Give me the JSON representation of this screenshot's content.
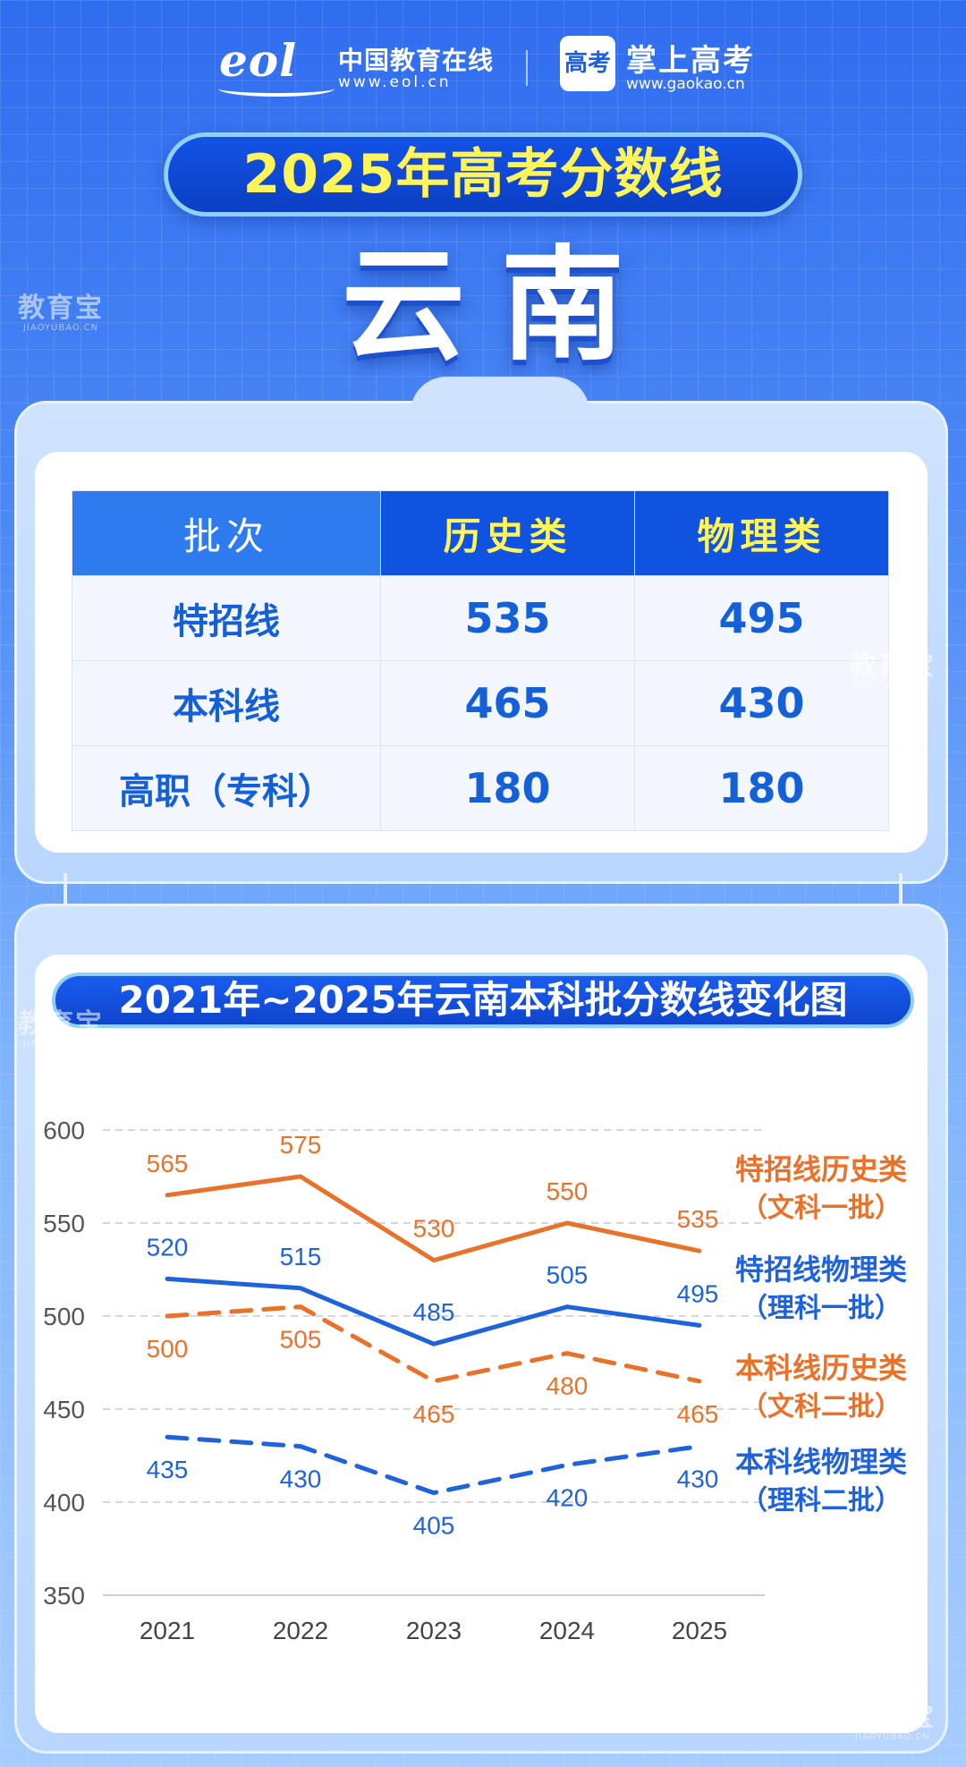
{
  "brand": {
    "eol_mark": "eol",
    "eol_name": "中国教育在线",
    "eol_url": "www.eol.cn",
    "gk_icon": "高考",
    "gk_name": "掌上高考",
    "gk_url": "www.gaokao.cn"
  },
  "banner": {
    "title": "2025年高考分数线"
  },
  "province": "云南",
  "watermark": {
    "cn": "教育宝",
    "en": "JIAOYUBAO.CN"
  },
  "table": {
    "headers": [
      "批次",
      "历史类",
      "物理类"
    ],
    "rows": [
      {
        "batch": "特招线",
        "history": "535",
        "physics": "495"
      },
      {
        "batch": "本科线",
        "history": "465",
        "physics": "430"
      },
      {
        "batch": "高职（专科）",
        "history": "180",
        "physics": "180"
      }
    ]
  },
  "colors": {
    "orange": "#e9722b",
    "blue": "#1f63dc",
    "header_blue": "#0f53e0",
    "header_light": "#2e7bf0",
    "yellow": "#fff45a"
  },
  "chart_data": {
    "type": "line",
    "title": "2021年~2025年云南本科批分数线变化图",
    "x": [
      "2021",
      "2022",
      "2023",
      "2024",
      "2025"
    ],
    "ylim": [
      350,
      600
    ],
    "yticks": [
      "350",
      "400",
      "450",
      "500",
      "550",
      "600"
    ],
    "grid": true,
    "series": [
      {
        "name": "特招线历史类",
        "name2": "（文科一批）",
        "values": [
          565,
          575,
          530,
          550,
          535
        ],
        "color": "#e9722b",
        "dashed": false
      },
      {
        "name": "特招线物理类",
        "name2": "（理科一批）",
        "values": [
          520,
          515,
          485,
          505,
          495
        ],
        "color": "#1f63dc",
        "dashed": false
      },
      {
        "name": "本科线历史类",
        "name2": "（文科二批）",
        "values": [
          500,
          505,
          465,
          480,
          465
        ],
        "color": "#e9722b",
        "dashed": true
      },
      {
        "name": "本科线物理类",
        "name2": "（理科二批）",
        "values": [
          435,
          430,
          405,
          420,
          430
        ],
        "color": "#1f63dc",
        "dashed": true
      }
    ]
  }
}
